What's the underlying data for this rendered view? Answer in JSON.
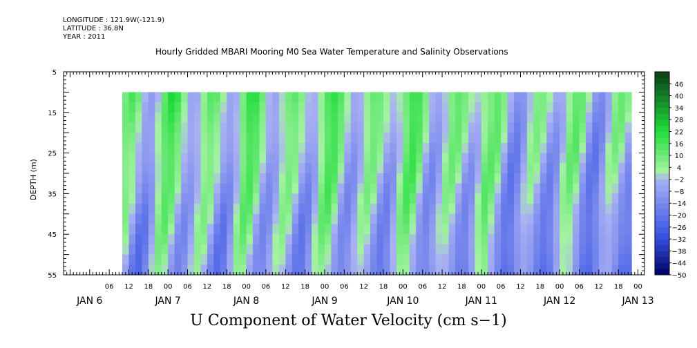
{
  "header": {
    "longitude": "LONGITUDE : 121.9W(-121.9)",
    "latitude": "LATITUDE : 36.8N",
    "year": "YEAR : 2011"
  },
  "chart_data": {
    "type": "heatmap",
    "title": "Hourly Gridded MBARI Mooring M0 Sea Water Temperature and Salinity Observations",
    "bottom_title": "U Component of Water Velocity (cm s−1)",
    "ylabel": "DEPTH (m)",
    "y_ticks": [
      "5",
      "15",
      "25",
      "35",
      "45",
      "55"
    ],
    "y_range": [
      5,
      55
    ],
    "y_inverted": true,
    "data_depth_range": [
      10,
      55
    ],
    "x_range_hours_from_jan6_00": [
      -8,
      170
    ],
    "data_time_range_hours_from_jan6_00": [
      10,
      166
    ],
    "x_hour_labels": [
      "06",
      "12",
      "18",
      "00",
      "06",
      "12",
      "18",
      "00",
      "06",
      "12",
      "18",
      "00",
      "06",
      "12",
      "18",
      "00",
      "06",
      "12",
      "18",
      "00",
      "06",
      "12",
      "18",
      "00",
      "06",
      "12",
      "18",
      "00"
    ],
    "x_day_labels": [
      "JAN 6",
      "JAN 7",
      "JAN 8",
      "JAN 9",
      "JAN 10",
      "JAN 11",
      "JAN 12",
      "JAN 13"
    ],
    "colorbar": {
      "labels": [
        "46",
        "40",
        "34",
        "28",
        "22",
        "16",
        "10",
        "4",
        "-2",
        "-8",
        "-14",
        "-20",
        "-26",
        "-32",
        "-38",
        "-44",
        "-50"
      ],
      "min": -50,
      "max": 52,
      "step": 3
    },
    "colors": {
      "strong_positive": "#0a3d16",
      "positive": "#22dd3d",
      "weak_positive": "#a5f2a3",
      "weak_negative": "#a9b1f3",
      "negative": "#3a55e4",
      "strong_negative": "#000066"
    }
  }
}
